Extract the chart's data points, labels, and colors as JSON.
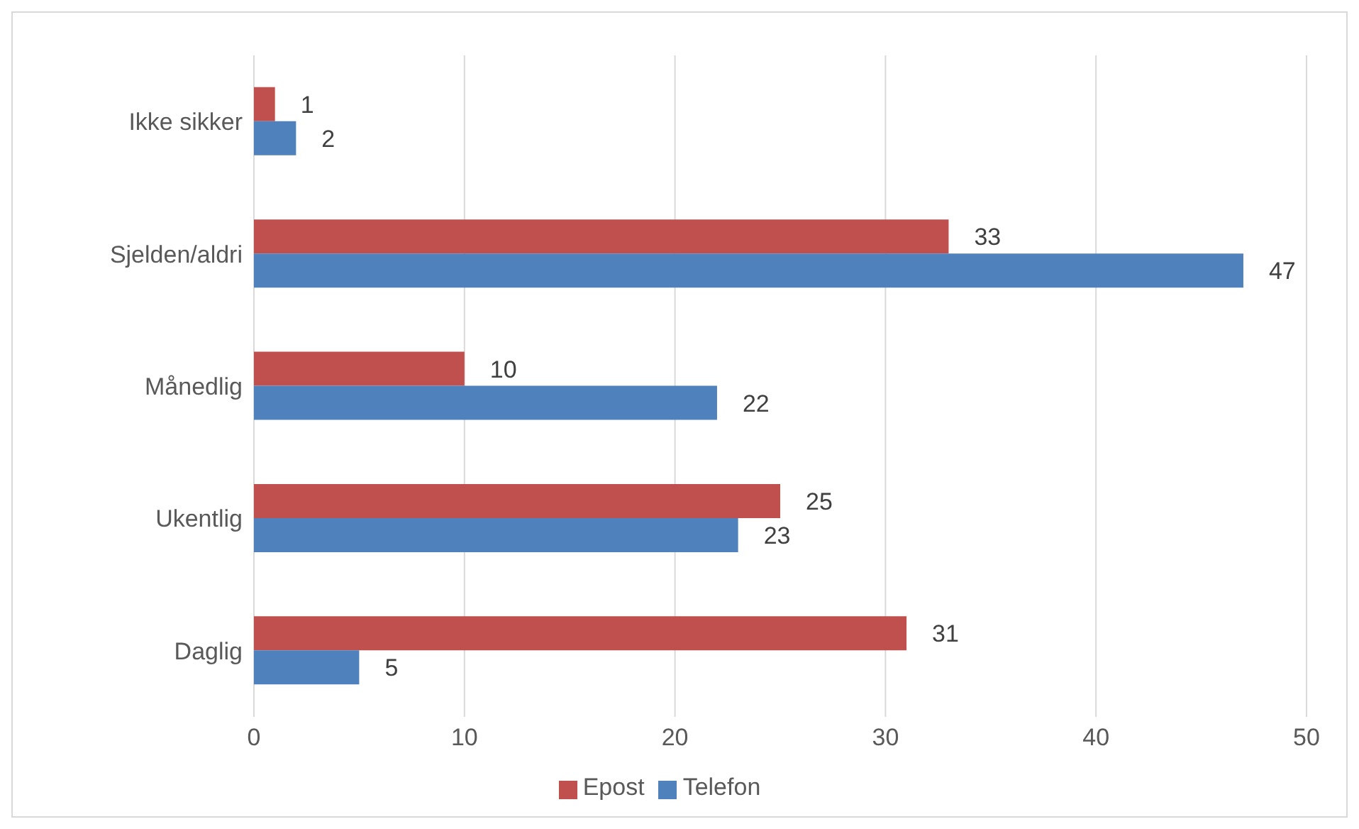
{
  "chart_data": {
    "type": "bar",
    "orientation": "horizontal",
    "categories": [
      "Ikke sikker",
      "Sjelden/aldri",
      "Månedlig",
      "Ukentlig",
      "Daglig"
    ],
    "series": [
      {
        "name": "Epost",
        "color": "#c0504d",
        "values": [
          1,
          33,
          10,
          25,
          31
        ]
      },
      {
        "name": "Telefon",
        "color": "#4f81bd",
        "values": [
          2,
          47,
          22,
          23,
          5
        ]
      }
    ],
    "xlim": [
      0,
      50
    ],
    "xticks": [
      0,
      10,
      20,
      30,
      40,
      50
    ],
    "grid": "x",
    "legend": "bottom",
    "data_labels": true
  }
}
